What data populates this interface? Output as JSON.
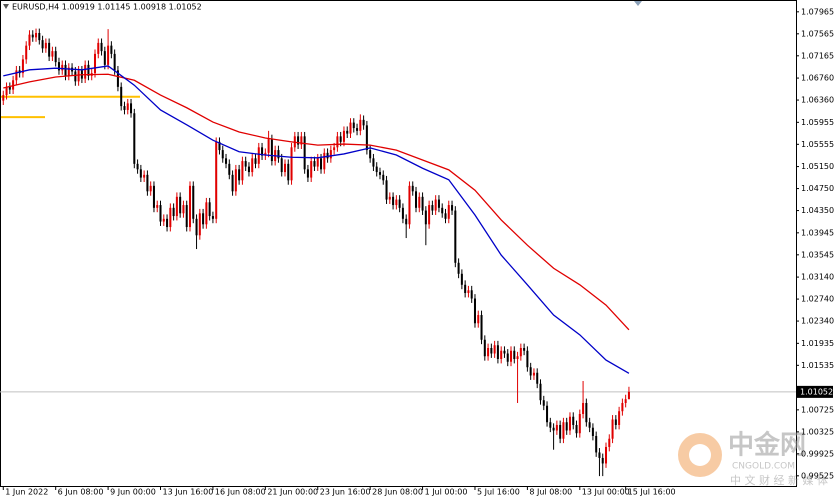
{
  "chart_data": {
    "type": "candlestick",
    "title": "EURUSD,H4  1.00919 1.01145 1.00918 1.01052",
    "up_color": "#e00000",
    "down_color": "#000000",
    "xlim": [
      -1,
      242
    ],
    "ylim": [
      0.9934,
      1.0818
    ],
    "xticks": [
      {
        "value": 0,
        "label": "1 Jun 2022"
      },
      {
        "value": 16,
        "label": "6 Jun 08:00"
      },
      {
        "value": 32,
        "label": "9 Jun 00:00"
      },
      {
        "value": 48,
        "label": "13 Jun 16:00"
      },
      {
        "value": 64,
        "label": "16 Jun 08:00"
      },
      {
        "value": 80,
        "label": "21 Jun 00:00"
      },
      {
        "value": 96,
        "label": "23 Jun 16:00"
      },
      {
        "value": 112,
        "label": "28 Jun 08:00"
      },
      {
        "value": 128,
        "label": "1 Jul 00:00"
      },
      {
        "value": 144,
        "label": "5 Jul 16:00"
      },
      {
        "value": 160,
        "label": "8 Jul 08:00"
      },
      {
        "value": 176,
        "label": "13 Jul 00:00"
      },
      {
        "value": 190,
        "label": "15 Jul 16:00"
      }
    ],
    "yticks": [
      1.07965,
      1.07565,
      1.07165,
      {
        "value": 1.0676,
        "label": "1.06760"
      },
      {
        "value": 1.0636,
        "label": "1.06360"
      },
      1.05955,
      1.05555,
      {
        "value": 1.0515,
        "label": "1.05150"
      },
      {
        "value": 1.0475,
        "label": "1.04750"
      },
      {
        "value": 1.0435,
        "label": "1.04350"
      },
      1.03945,
      1.03545,
      {
        "value": 1.0314,
        "label": "1.03140"
      },
      {
        "value": 1.0274,
        "label": "1.02740"
      },
      {
        "value": 1.0234,
        "label": "1.02340"
      },
      1.01935,
      1.01535,
      1.00725,
      1.00325,
      0.99925,
      0.99525
    ],
    "last_price": 1.01052,
    "levels": [
      {
        "value": 1.0642,
        "color": "#ffc000"
      },
      {
        "value": 1.0605,
        "color": "#ffc000"
      }
    ],
    "ohlc": [
      [
        1.0635,
        1.0653,
        1.0627,
        1.0645
      ],
      [
        1.0645,
        1.0668,
        1.0637,
        1.066
      ],
      [
        1.066,
        1.0668,
        1.0647,
        1.0655
      ],
      [
        1.0655,
        1.068,
        1.0647,
        1.0672
      ],
      [
        1.0672,
        1.0698,
        1.0664,
        1.069
      ],
      [
        1.069,
        1.0698,
        1.0677,
        1.0685
      ],
      [
        1.0685,
        1.0718,
        1.0677,
        1.071
      ],
      [
        1.071,
        1.0743,
        1.0702,
        1.0735
      ],
      [
        1.0735,
        1.0763,
        1.0727,
        1.0755
      ],
      [
        1.0755,
        1.0763,
        1.0742,
        1.075
      ],
      [
        1.075,
        1.0766,
        1.0742,
        1.0758
      ],
      [
        1.0758,
        1.0766,
        1.0737,
        1.0745
      ],
      [
        1.0745,
        1.0753,
        1.0722,
        1.073
      ],
      [
        1.073,
        1.0748,
        1.0722,
        1.074
      ],
      [
        1.074,
        1.0748,
        1.0707,
        1.0715
      ],
      [
        1.0715,
        1.0733,
        1.0707,
        1.0725
      ],
      [
        1.0725,
        1.0733,
        1.0697,
        1.0705
      ],
      [
        1.0705,
        1.0713,
        1.0682,
        1.069
      ],
      [
        1.069,
        1.0708,
        1.0682,
        1.07
      ],
      [
        1.07,
        1.0708,
        1.0672,
        1.068
      ],
      [
        1.068,
        1.0703,
        1.0672,
        1.0695
      ],
      [
        1.0695,
        1.0703,
        1.068,
        1.0688
      ],
      [
        1.0688,
        1.0696,
        1.0662,
        1.067
      ],
      [
        1.067,
        1.0698,
        1.0662,
        1.069
      ],
      [
        1.069,
        1.0698,
        1.0667,
        1.0675
      ],
      [
        1.0675,
        1.0708,
        1.0667,
        1.07
      ],
      [
        1.07,
        1.0708,
        1.0672,
        1.068
      ],
      [
        1.068,
        1.0693,
        1.0672,
        1.0685
      ],
      [
        1.0685,
        1.0728,
        1.0677,
        1.072
      ],
      [
        1.072,
        1.0748,
        1.0712,
        1.074
      ],
      [
        1.074,
        1.0748,
        1.0717,
        1.0725
      ],
      [
        1.0725,
        1.0733,
        1.0692,
        1.07
      ],
      [
        1.07,
        1.0765,
        1.0692,
        1.0735
      ],
      [
        1.0735,
        1.0743,
        1.0712,
        1.072
      ],
      [
        1.072,
        1.0728,
        1.0682,
        1.069
      ],
      [
        1.069,
        1.0698,
        1.0652,
        1.066
      ],
      [
        1.066,
        1.0668,
        1.0617,
        1.0625
      ],
      [
        1.0625,
        1.0633,
        1.061,
        1.0618
      ],
      [
        1.0618,
        1.0638,
        1.061,
        1.063
      ],
      [
        1.063,
        1.0638,
        1.0604,
        1.0612
      ],
      [
        1.0612,
        1.062,
        1.0512,
        1.052
      ],
      [
        1.052,
        1.0528,
        1.0502,
        1.051
      ],
      [
        1.051,
        1.0518,
        1.0487,
        1.0495
      ],
      [
        1.0495,
        1.0508,
        1.0487,
        1.05
      ],
      [
        1.05,
        1.0508,
        1.0462,
        1.047
      ],
      [
        1.047,
        1.0488,
        1.0462,
        1.048
      ],
      [
        1.048,
        1.0488,
        1.0432,
        1.044
      ],
      [
        1.044,
        1.0453,
        1.0432,
        1.0445
      ],
      [
        1.0445,
        1.0453,
        1.0407,
        1.0415
      ],
      [
        1.0415,
        1.0428,
        1.0407,
        1.042
      ],
      [
        1.042,
        1.0428,
        1.0397,
        1.0405
      ],
      [
        1.0405,
        1.0448,
        1.0397,
        1.044
      ],
      [
        1.044,
        1.0448,
        1.0417,
        1.0425
      ],
      [
        1.0425,
        1.0468,
        1.0417,
        1.046
      ],
      [
        1.046,
        1.0468,
        1.0422,
        1.043
      ],
      [
        1.043,
        1.0453,
        1.0422,
        1.0445
      ],
      [
        1.0445,
        1.0453,
        1.0397,
        1.0405
      ],
      [
        1.0405,
        1.0488,
        1.0397,
        1.048
      ],
      [
        1.048,
        1.0488,
        1.0412,
        1.042
      ],
      [
        1.042,
        1.0428,
        1.0365,
        1.039
      ],
      [
        1.039,
        1.0438,
        1.0382,
        1.043
      ],
      [
        1.043,
        1.0438,
        1.0402,
        1.041
      ],
      [
        1.041,
        1.0458,
        1.0402,
        1.045
      ],
      [
        1.045,
        1.0458,
        1.0417,
        1.0425
      ],
      [
        1.0425,
        1.0433,
        1.0412,
        1.042
      ],
      [
        1.042,
        1.0568,
        1.0412,
        1.056
      ],
      [
        1.056,
        1.0568,
        1.0537,
        1.0545
      ],
      [
        1.0545,
        1.0553,
        1.0522,
        1.053
      ],
      [
        1.053,
        1.0538,
        1.0512,
        1.052
      ],
      [
        1.052,
        1.0528,
        1.0492,
        1.05
      ],
      [
        1.05,
        1.0508,
        1.0462,
        1.047
      ],
      [
        1.047,
        1.0518,
        1.0462,
        1.051
      ],
      [
        1.051,
        1.0518,
        1.0482,
        1.049
      ],
      [
        1.049,
        1.0533,
        1.0482,
        1.0525
      ],
      [
        1.0525,
        1.0533,
        1.0507,
        1.0515
      ],
      [
        1.0515,
        1.0523,
        1.0497,
        1.0505
      ],
      [
        1.0505,
        1.0538,
        1.0497,
        1.053
      ],
      [
        1.053,
        1.0538,
        1.0512,
        1.052
      ],
      [
        1.052,
        1.0558,
        1.0512,
        1.055
      ],
      [
        1.055,
        1.0558,
        1.0527,
        1.0535
      ],
      [
        1.0535,
        1.0548,
        1.0527,
        1.054
      ],
      [
        1.054,
        1.058,
        1.0532,
        1.0565
      ],
      [
        1.0565,
        1.0573,
        1.0517,
        1.0525
      ],
      [
        1.0525,
        1.0553,
        1.0517,
        1.0545
      ],
      [
        1.0545,
        1.0553,
        1.0522,
        1.053
      ],
      [
        1.053,
        1.0538,
        1.0497,
        1.0505
      ],
      [
        1.0505,
        1.0528,
        1.0497,
        1.052
      ],
      [
        1.052,
        1.0528,
        1.0482,
        1.049
      ],
      [
        1.049,
        1.0558,
        1.0482,
        1.055
      ],
      [
        1.055,
        1.0578,
        1.0542,
        1.057
      ],
      [
        1.057,
        1.0578,
        1.0547,
        1.0555
      ],
      [
        1.0555,
        1.0578,
        1.0547,
        1.057
      ],
      [
        1.057,
        1.0578,
        1.0502,
        1.051
      ],
      [
        1.051,
        1.0518,
        1.0487,
        1.0495
      ],
      [
        1.0495,
        1.0533,
        1.0487,
        1.0525
      ],
      [
        1.0525,
        1.0533,
        1.0507,
        1.0515
      ],
      [
        1.0515,
        1.0538,
        1.0507,
        1.053
      ],
      [
        1.053,
        1.0538,
        1.0502,
        1.051
      ],
      [
        1.051,
        1.0548,
        1.0502,
        1.054
      ],
      [
        1.054,
        1.0548,
        1.0522,
        1.053
      ],
      [
        1.053,
        1.0553,
        1.0522,
        1.0545
      ],
      [
        1.0545,
        1.0558,
        1.0537,
        1.055
      ],
      [
        1.055,
        1.0578,
        1.0542,
        1.057
      ],
      [
        1.057,
        1.0578,
        1.0552,
        1.056
      ],
      [
        1.056,
        1.0588,
        1.0552,
        1.058
      ],
      [
        1.058,
        1.0588,
        1.0567,
        1.0575
      ],
      [
        1.0575,
        1.0603,
        1.0567,
        1.0595
      ],
      [
        1.0595,
        1.0603,
        1.0577,
        1.0585
      ],
      [
        1.0585,
        1.0593,
        1.0572,
        1.058
      ],
      [
        1.058,
        1.061,
        1.0572,
        1.06
      ],
      [
        1.06,
        1.0608,
        1.0582,
        1.059
      ],
      [
        1.059,
        1.0598,
        1.0537,
        1.0545
      ],
      [
        1.0545,
        1.0553,
        1.0522,
        1.053
      ],
      [
        1.053,
        1.0538,
        1.0507,
        1.0515
      ],
      [
        1.0515,
        1.0523,
        1.0497,
        1.0505
      ],
      [
        1.0505,
        1.0513,
        1.0492,
        1.05
      ],
      [
        1.05,
        1.0508,
        1.0482,
        1.049
      ],
      [
        1.049,
        1.0498,
        1.0447,
        1.0455
      ],
      [
        1.0455,
        1.0468,
        1.0447,
        1.046
      ],
      [
        1.046,
        1.0468,
        1.0437,
        1.0445
      ],
      [
        1.0445,
        1.0463,
        1.0437,
        1.0455
      ],
      [
        1.0455,
        1.0463,
        1.0432,
        1.044
      ],
      [
        1.044,
        1.0448,
        1.0412,
        1.042
      ],
      [
        1.042,
        1.0428,
        1.0385,
        1.041
      ],
      [
        1.041,
        1.0488,
        1.0402,
        1.048
      ],
      [
        1.048,
        1.0488,
        1.0462,
        1.047
      ],
      [
        1.047,
        1.0478,
        1.0432,
        1.044
      ],
      [
        1.044,
        1.0468,
        1.0432,
        1.046
      ],
      [
        1.046,
        1.0468,
        1.0427,
        1.0435
      ],
      [
        1.0435,
        1.0443,
        1.0372,
        1.041
      ],
      [
        1.041,
        1.0453,
        1.0402,
        1.0445
      ],
      [
        1.0445,
        1.0453,
        1.0427,
        1.0435
      ],
      [
        1.0435,
        1.0463,
        1.0427,
        1.0455
      ],
      [
        1.0455,
        1.0463,
        1.0432,
        1.044
      ],
      [
        1.044,
        1.0448,
        1.0422,
        1.043
      ],
      [
        1.043,
        1.0438,
        1.0412,
        1.042
      ],
      [
        1.042,
        1.0453,
        1.0412,
        1.0445
      ],
      [
        1.0445,
        1.0453,
        1.0427,
        1.0435
      ],
      [
        1.0435,
        1.0443,
        1.0332,
        1.034
      ],
      [
        1.034,
        1.0348,
        1.0312,
        1.032
      ],
      [
        1.032,
        1.0328,
        1.0292,
        1.03
      ],
      [
        1.03,
        1.0308,
        1.0277,
        1.0285
      ],
      [
        1.0285,
        1.0298,
        1.0277,
        1.029
      ],
      [
        1.029,
        1.0298,
        1.0267,
        1.0275
      ],
      [
        1.0275,
        1.0283,
        1.0222,
        1.023
      ],
      [
        1.023,
        1.0253,
        1.0222,
        1.0245
      ],
      [
        1.0245,
        1.0253,
        1.0192,
        1.02
      ],
      [
        1.02,
        1.0208,
        1.0162,
        1.017
      ],
      [
        1.017,
        1.0193,
        1.0162,
        1.0185
      ],
      [
        1.0185,
        1.0193,
        1.0167,
        1.0175
      ],
      [
        1.0175,
        1.0198,
        1.0167,
        1.019
      ],
      [
        1.019,
        1.0198,
        1.0157,
        1.0165
      ],
      [
        1.0165,
        1.0188,
        1.0157,
        1.018
      ],
      [
        1.018,
        1.0188,
        1.0167,
        1.0175
      ],
      [
        1.0175,
        1.0183,
        1.0152,
        1.016
      ],
      [
        1.016,
        1.0188,
        1.0152,
        1.018
      ],
      [
        1.018,
        1.0188,
        1.0157,
        1.0165
      ],
      [
        1.0165,
        1.0178,
        1.0085,
        1.017
      ],
      [
        1.017,
        1.0193,
        1.0162,
        1.0185
      ],
      [
        1.0185,
        1.0193,
        1.0172,
        1.018
      ],
      [
        1.018,
        1.0188,
        1.0142,
        1.015
      ],
      [
        1.015,
        1.0158,
        1.0127,
        1.0135
      ],
      [
        1.0135,
        1.0148,
        1.0127,
        1.014
      ],
      [
        1.014,
        1.0148,
        1.0112,
        1.012
      ],
      [
        1.012,
        1.0128,
        1.0082,
        1.009
      ],
      [
        1.009,
        1.0098,
        1.0072,
        1.008
      ],
      [
        1.008,
        1.0088,
        1.0042,
        1.005
      ],
      [
        1.005,
        1.0058,
        1.0032,
        1.004
      ],
      [
        1.004,
        1.0048,
        1.0,
        1.0035
      ],
      [
        1.0035,
        1.0053,
        1.0027,
        1.0045
      ],
      [
        1.0045,
        1.0053,
        1.0012,
        1.002
      ],
      [
        1.002,
        1.0058,
        1.0012,
        1.005
      ],
      [
        1.005,
        1.0058,
        1.0027,
        1.0035
      ],
      [
        1.0035,
        1.0068,
        1.0027,
        1.006
      ],
      [
        1.006,
        1.0068,
        1.0037,
        1.0045
      ],
      [
        1.0045,
        1.0053,
        1.0022,
        1.003
      ],
      [
        1.003,
        1.0073,
        1.0022,
        1.0065
      ],
      [
        1.0065,
        1.0125,
        1.0057,
        1.0085
      ],
      [
        1.0085,
        1.0093,
        1.0042,
        1.005
      ],
      [
        1.005,
        1.0058,
        1.0032,
        1.004
      ],
      [
        1.004,
        1.0048,
        1.0017,
        1.0025
      ],
      [
        1.0025,
        1.0033,
        0.9987,
        0.9995
      ],
      [
        0.9995,
        1.0003,
        0.9952,
        0.9985
      ],
      [
        0.9985,
        0.9993,
        0.9952,
        0.9975
      ],
      [
        0.9975,
        1.0013,
        0.9967,
        1.0005
      ],
      [
        1.0005,
        1.0028,
        0.9997,
        1.002
      ],
      [
        1.002,
        1.0063,
        1.0012,
        1.0055
      ],
      [
        1.0055,
        1.0063,
        1.0037,
        1.0045
      ],
      [
        1.0045,
        1.0078,
        1.0037,
        1.007
      ],
      [
        1.007,
        1.0093,
        1.0062,
        1.0085
      ],
      [
        1.0085,
        1.01,
        1.0077,
        1.00919
      ],
      [
        1.00919,
        1.01145,
        1.00918,
        1.01052
      ]
    ],
    "series": [
      {
        "color": "#e00000",
        "x": [
          0,
          8,
          16,
          24,
          32,
          40,
          48,
          56,
          64,
          72,
          80,
          88,
          96,
          104,
          112,
          120,
          128,
          136,
          144,
          152,
          160,
          168,
          176,
          184,
          191
        ],
        "values": [
          1.0658,
          1.0669,
          1.0678,
          1.0682,
          1.0683,
          1.0672,
          1.0645,
          1.0622,
          1.0596,
          1.0578,
          1.0567,
          1.056,
          1.0554,
          1.0556,
          1.0554,
          1.0545,
          1.0527,
          1.0509,
          1.0472,
          1.0418,
          1.0372,
          1.033,
          1.03,
          1.0263,
          1.0218
        ]
      },
      {
        "color": "#0000c8",
        "x": [
          0,
          8,
          16,
          24,
          32,
          40,
          48,
          56,
          64,
          72,
          80,
          88,
          96,
          104,
          112,
          120,
          128,
          136,
          144,
          152,
          160,
          168,
          176,
          184,
          191
        ],
        "values": [
          1.068,
          1.0691,
          1.0694,
          1.0691,
          1.0698,
          1.0663,
          1.0618,
          1.0591,
          1.0563,
          1.0542,
          1.0536,
          1.0532,
          1.0531,
          1.0538,
          1.0549,
          1.0536,
          1.0512,
          1.0491,
          1.0427,
          1.0354,
          1.03,
          1.0245,
          1.0209,
          1.0163,
          1.0139
        ]
      }
    ]
  },
  "watermark": {
    "brand": "中金网",
    "site": "CNGOLD.COM",
    "tagline": "中 文 财 经 新 媒 体"
  }
}
